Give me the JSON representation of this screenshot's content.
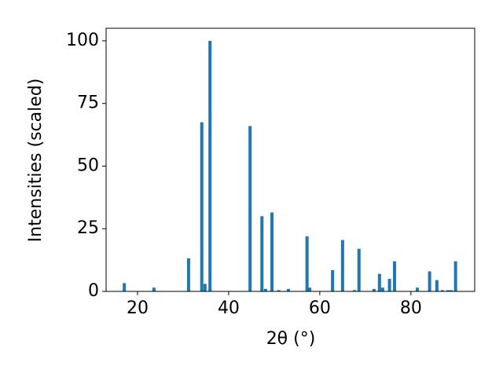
{
  "chart_data": {
    "type": "bar",
    "xlabel": "2θ (°)",
    "ylabel": "Intensities (scaled)",
    "color": "#1f77b4",
    "x": [
      17.1,
      23.6,
      31.2,
      34.1,
      34.8,
      35.9,
      44.7,
      47.3,
      48.1,
      49.5,
      51.0,
      53.1,
      57.2,
      57.8,
      62.8,
      65.0,
      67.6,
      68.6,
      71.9,
      73.1,
      73.8,
      75.3,
      76.4,
      81.4,
      84.1,
      85.7,
      86.9,
      88.1,
      88.8,
      89.8
    ],
    "values": [
      3.3,
      1.5,
      13.2,
      67.5,
      3,
      100,
      66,
      30,
      1,
      31.5,
      0.5,
      1,
      22,
      1.5,
      8.5,
      20.5,
      0.5,
      17,
      1,
      7,
      1.5,
      5,
      12,
      1.5,
      8,
      4.5,
      0.5,
      0.5,
      0.5,
      12
    ],
    "xlim": [
      13.1,
      94
    ],
    "ylim": [
      0,
      105
    ],
    "xticks": [
      20,
      40,
      60,
      80
    ],
    "yticks": [
      0,
      25,
      50,
      75,
      100
    ]
  }
}
